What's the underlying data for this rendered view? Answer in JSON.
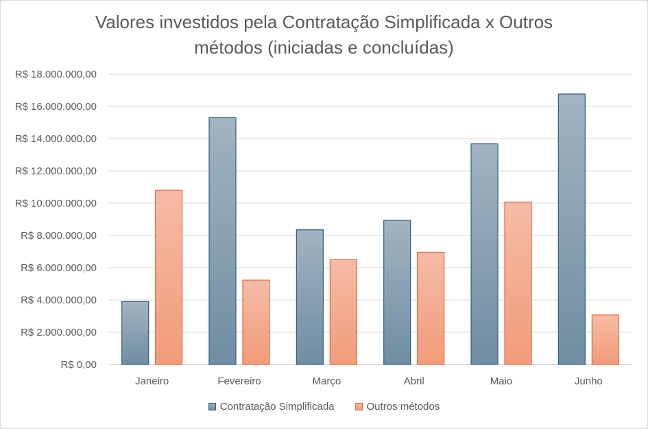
{
  "chart_data": {
    "type": "bar",
    "title_lines": [
      "Valores investidos pela Contratação Simplificada x Outros",
      "métodos (iniciadas e concluídas)"
    ],
    "categories": [
      "Janeiro",
      "Fevereiro",
      "Março",
      "Abril",
      "Maio",
      "Junho"
    ],
    "series": [
      {
        "name": "Contratação Simplificada",
        "values": [
          3900000,
          15300000,
          8350000,
          8930000,
          13680000,
          16770000
        ],
        "color_top": "#a3b3c1",
        "color_bottom": "#6f8ea3",
        "stroke": "#2e5d7c"
      },
      {
        "name": "Outros métodos",
        "values": [
          10800000,
          5230000,
          6500000,
          6960000,
          10070000,
          3070000
        ],
        "color_top": "#f6bba6",
        "color_bottom": "#f19c7a",
        "stroke": "#e2693f"
      }
    ],
    "ylim": [
      0,
      18000000
    ],
    "ytick_step": 2000000,
    "ytick_labels": [
      "R$ 0,00",
      "R$ 2.000.000,00",
      "R$ 4.000.000,00",
      "R$ 6.000.000,00",
      "R$ 8.000.000,00",
      "R$ 10.000.000,00",
      "R$ 12.000.000,00",
      "R$ 14.000.000,00",
      "R$ 16.000.000,00",
      "R$ 18.000.000,00"
    ],
    "grid": true,
    "legend_position": "bottom"
  }
}
